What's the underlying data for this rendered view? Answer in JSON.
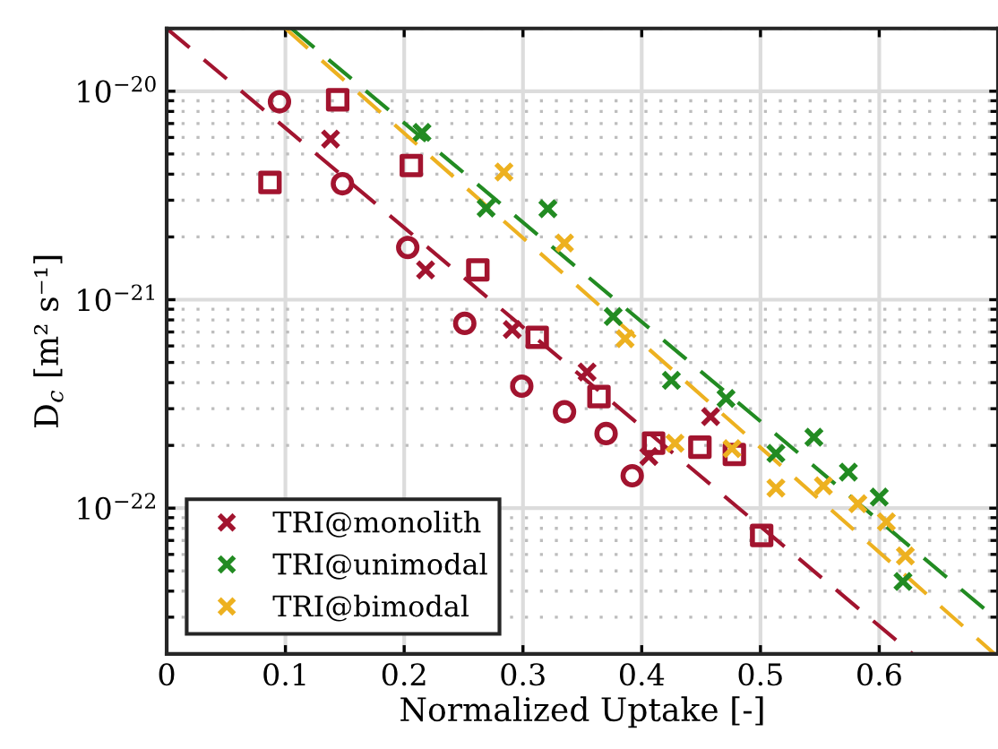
{
  "chart_data": {
    "type": "scatter",
    "xlabel": "Normalized Uptake [-]",
    "ylabel": "D$_{c}$ [m² s⁻¹]",
    "log": "y",
    "grid": true,
    "legend": "bottom left",
    "xlim": [
      0,
      0.7
    ],
    "xticks": [
      0,
      0.1,
      0.2,
      0.3,
      0.4,
      0.5,
      0.6
    ],
    "ylim": [
      2e-23,
      2e-20
    ],
    "yticks": [
      {
        "value": 1e-22,
        "label": "10$^{−22}$"
      },
      {
        "value": 1e-21,
        "label": "10$^{−21}$"
      },
      {
        "value": 1e-20,
        "label": "10$^{−20}$"
      }
    ],
    "series": [
      {
        "marker": "circle",
        "color": "#a2142f",
        "x": [
          0.095,
          0.148,
          0.203,
          0.251,
          0.299,
          0.335,
          0.37,
          0.392
        ],
        "values": [
          8.9e-21,
          3.6e-21,
          1.78e-21,
          7.7e-22,
          3.85e-22,
          2.9e-22,
          2.28e-22,
          1.43e-22
        ]
      },
      {
        "marker": "square",
        "color": "#a2142f",
        "x": [
          0.087,
          0.144,
          0.206,
          0.262,
          0.312,
          0.364,
          0.41,
          0.449,
          0.478,
          0.501
        ],
        "values": [
          3.65e-21,
          9.1e-21,
          4.4e-21,
          1.39e-21,
          6.6e-22,
          3.43e-22,
          2.05e-22,
          1.96e-22,
          1.81e-22,
          7.4e-23
        ]
      },
      {
        "marker": "cross",
        "name": "TRI@monolith",
        "color": "#a2142f",
        "x": [
          0.138,
          0.218,
          0.291,
          0.354,
          0.406,
          0.458
        ],
        "values": [
          5.9e-21,
          1.39e-21,
          7.2e-22,
          4.5e-22,
          1.77e-22,
          2.75e-22
        ]
      },
      {
        "marker": "cross",
        "name": "TRI@unimodal",
        "color": "#228b22",
        "x": [
          0.215,
          0.269,
          0.321,
          0.376,
          0.425,
          0.471,
          0.513,
          0.545,
          0.574,
          0.6,
          0.62
        ],
        "values": [
          6.35e-21,
          2.75e-21,
          2.73e-21,
          8.3e-22,
          4.1e-22,
          3.36e-22,
          1.83e-22,
          2.19e-22,
          1.49e-22,
          1.13e-22,
          4.45e-23
        ]
      },
      {
        "marker": "cross",
        "name": "TRI@bimodal",
        "color": "#edb120",
        "x": [
          0.284,
          0.335,
          0.386,
          0.428,
          0.476,
          0.513,
          0.553,
          0.582,
          0.606,
          0.622
        ],
        "values": [
          4.1e-21,
          1.87e-21,
          6.5e-22,
          2.05e-22,
          1.93e-22,
          1.25e-22,
          1.28e-22,
          1.05e-22,
          8.6e-23,
          5.9e-23
        ]
      },
      {
        "type": "line",
        "line_style": "dashed",
        "color": "#a2142f",
        "x": [
          0,
          0.628
        ],
        "values": [
          2e-20,
          2e-23
        ]
      },
      {
        "type": "line",
        "line_style": "dashed",
        "color": "#228b22",
        "x": [
          0.105,
          0.7
        ],
        "values": [
          2e-20,
          2.9e-23
        ]
      },
      {
        "type": "line",
        "line_style": "dashed",
        "color": "#edb120",
        "x": [
          0.1,
          0.697
        ],
        "values": [
          2e-20,
          2e-23
        ]
      }
    ]
  }
}
